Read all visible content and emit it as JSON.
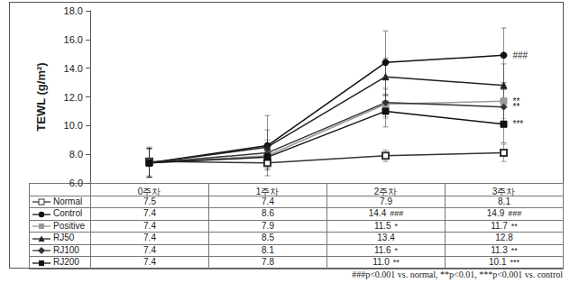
{
  "chart_data": {
    "type": "line",
    "ylabel": "TEWL (g/m²)",
    "categories": [
      "0주차",
      "1주차",
      "2주차",
      "3주차"
    ],
    "ylim": [
      6,
      18
    ],
    "yticks": [
      {
        "value": 6,
        "label": "6.0"
      },
      {
        "value": 8,
        "label": "8.0"
      },
      {
        "value": 10,
        "label": "10.0"
      },
      {
        "value": 12,
        "label": "12.0"
      },
      {
        "value": 14,
        "label": "14.0"
      },
      {
        "value": 16,
        "label": "16.0"
      },
      {
        "value": 18,
        "label": "18.0"
      }
    ],
    "grid": false,
    "note": "###p<0.001 vs. normal, **p<0.01, ***p<0.001 vs. control",
    "series": [
      {
        "name": "Normal",
        "color": "#333333",
        "marker": "open square",
        "values": [
          7.5,
          7.4,
          7.9,
          8.1
        ],
        "value_labels": [
          "7.5",
          "7.4",
          "7.9",
          "8.1"
        ],
        "errors": [
          1.0,
          0.5,
          0.4,
          0.6
        ],
        "significance": [
          null,
          null,
          null,
          null
        ]
      },
      {
        "name": "Control",
        "color": "#111111",
        "marker": "circle",
        "values": [
          7.4,
          8.6,
          14.4,
          14.9
        ],
        "value_labels": [
          "7.4",
          "8.6",
          "14.4",
          "14.9"
        ],
        "errors": [
          1.0,
          2.1,
          2.2,
          1.9
        ],
        "significance": [
          null,
          null,
          "###",
          "###"
        ]
      },
      {
        "name": "Positive",
        "color": "#999999",
        "marker": "square",
        "values": [
          7.4,
          7.9,
          11.5,
          11.7
        ],
        "value_labels": [
          "7.4",
          "7.9",
          "11.5",
          "11.7"
        ],
        "errors": [
          1.0,
          0.8,
          1.0,
          1.2
        ],
        "significance": [
          null,
          null,
          "*",
          "**"
        ]
      },
      {
        "name": "RJ50",
        "color": "#222222",
        "marker": "triangle",
        "values": [
          7.4,
          8.5,
          13.4,
          12.8
        ],
        "value_labels": [
          "7.4",
          "8.5",
          "13.4",
          "12.8"
        ],
        "errors": [
          1.0,
          1.2,
          1.3,
          1.5
        ],
        "significance": [
          null,
          null,
          null,
          null
        ]
      },
      {
        "name": "RJ100",
        "color": "#333333",
        "marker": "diamond",
        "values": [
          7.4,
          8.1,
          11.6,
          11.3
        ],
        "value_labels": [
          "7.4",
          "8.1",
          "11.6",
          "11.3"
        ],
        "errors": [
          1.0,
          0.9,
          1.0,
          1.2
        ],
        "significance": [
          null,
          null,
          "*",
          "**"
        ]
      },
      {
        "name": "RJ200",
        "color": "#111111",
        "marker": "square",
        "values": [
          7.4,
          7.8,
          11.0,
          10.1
        ],
        "value_labels": [
          "7.4",
          "7.8",
          "11.0",
          "10.1"
        ],
        "errors": [
          1.0,
          0.8,
          1.1,
          1.3
        ],
        "significance": [
          null,
          null,
          "**",
          "***"
        ]
      }
    ]
  }
}
